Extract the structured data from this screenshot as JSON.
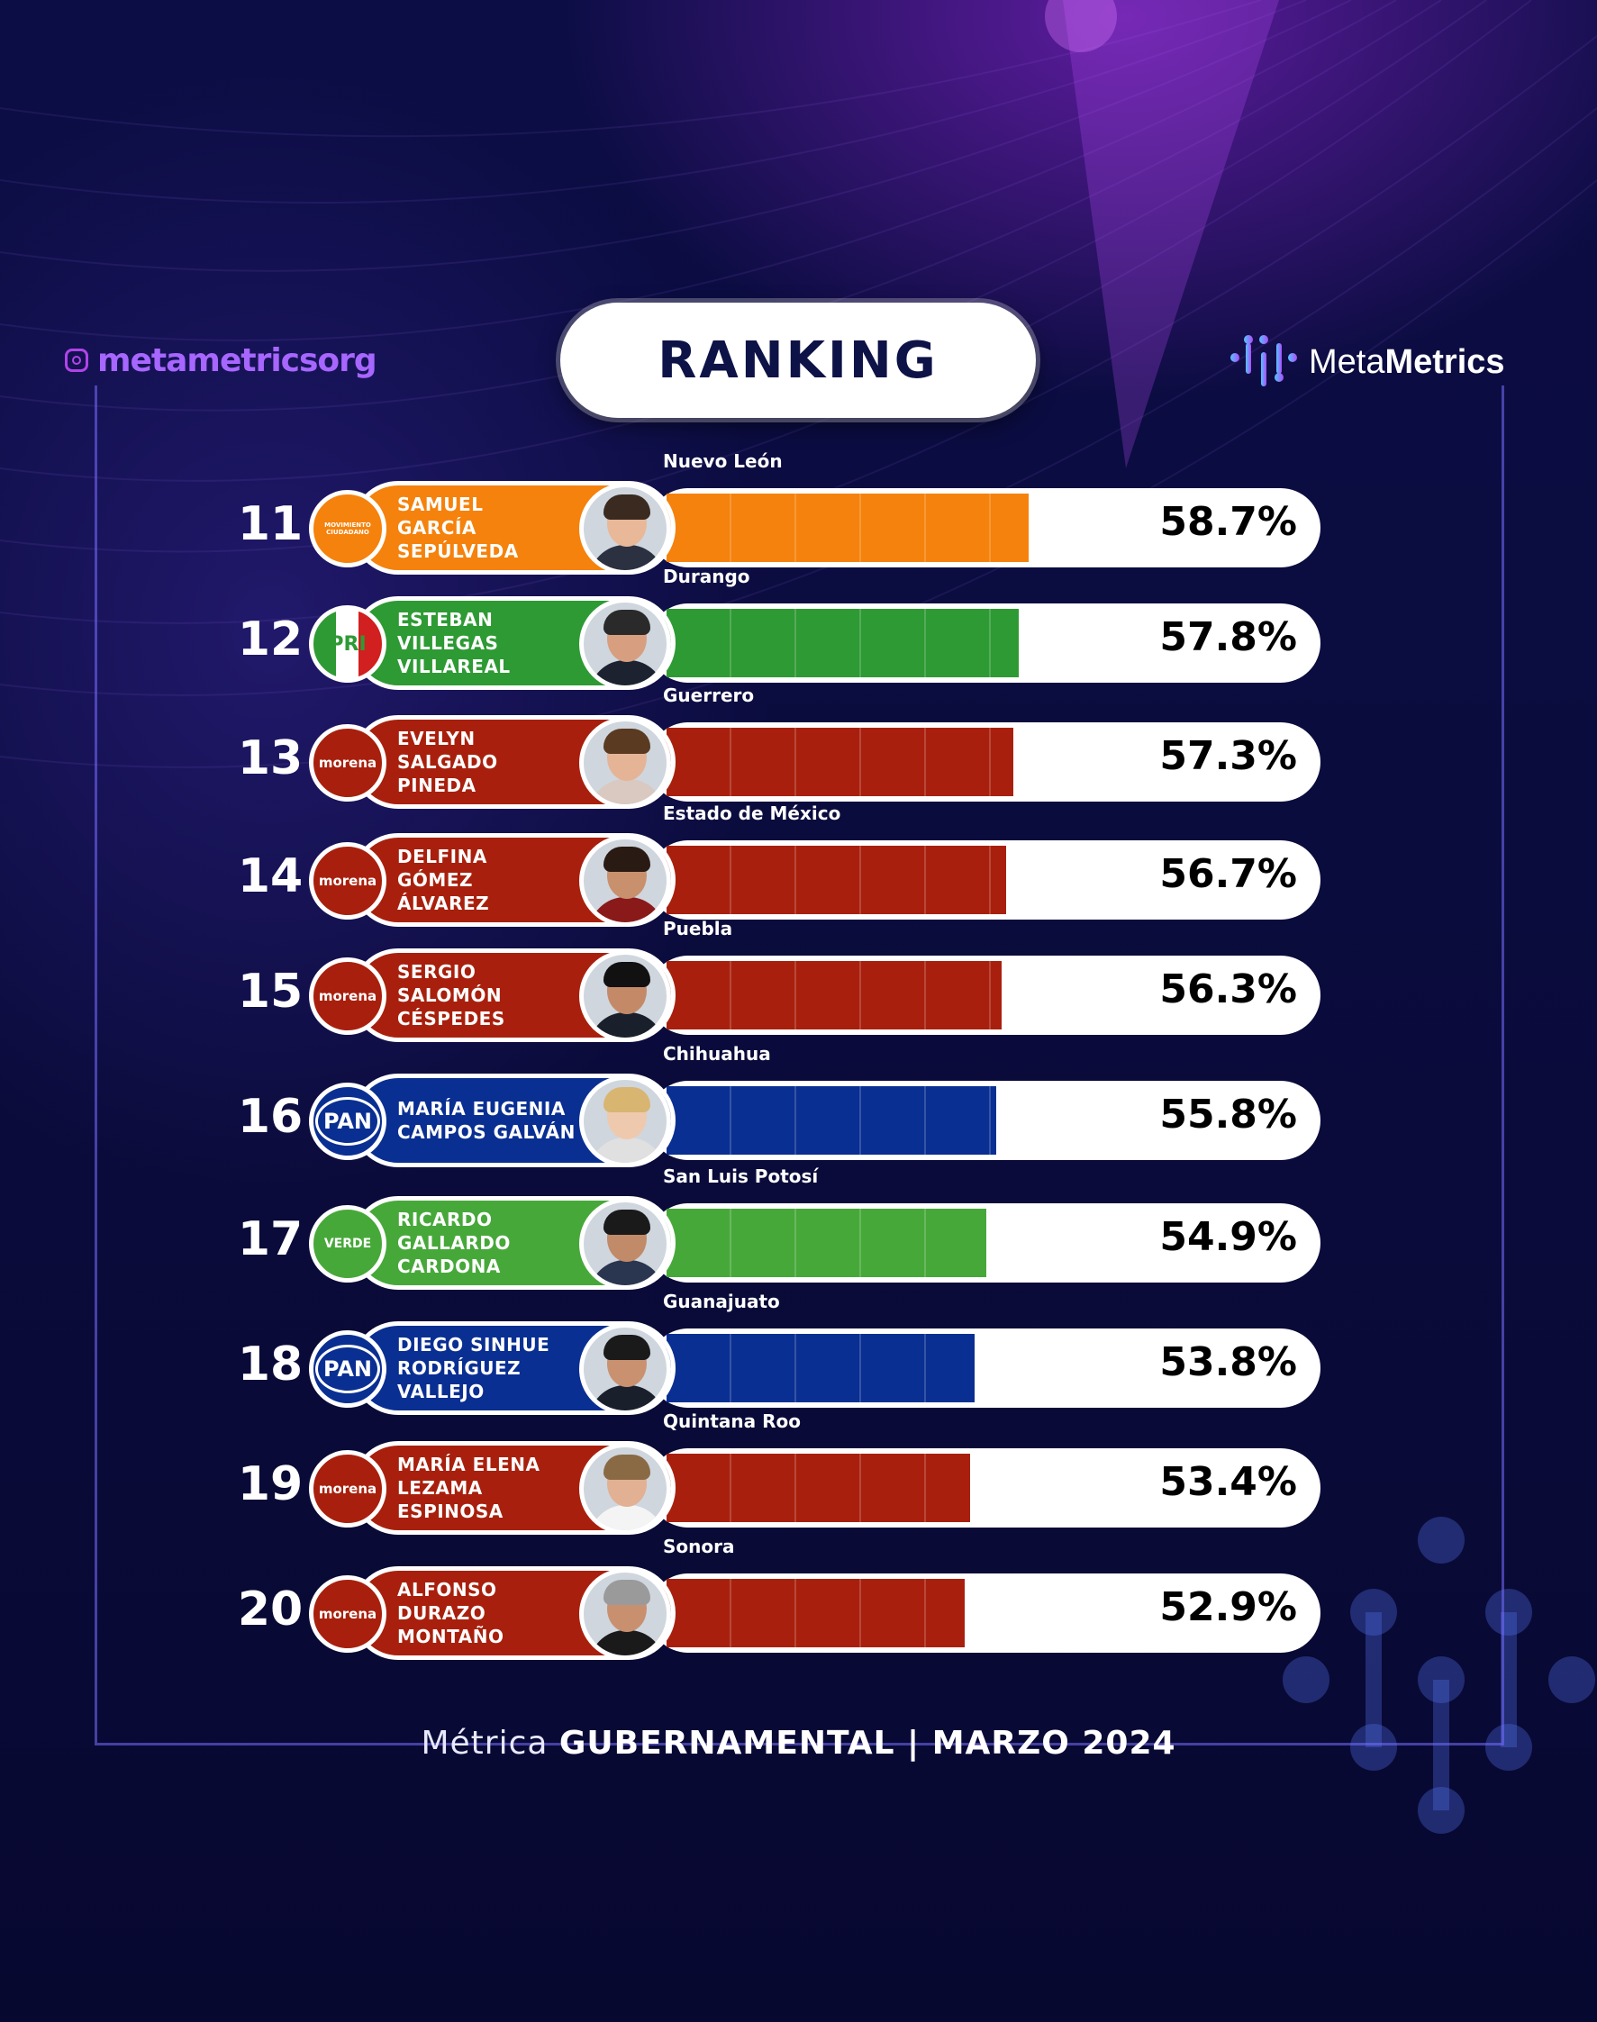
{
  "header": {
    "instagram_handle": "metametricsorg",
    "title": "RANKING",
    "brand_prefix": "Meta",
    "brand_suffix": "Metrics"
  },
  "footer": {
    "light": "Métrica",
    "bold": "GUBERNAMENTAL | MARZO 2024"
  },
  "colors": {
    "mc": "#f5820c",
    "pri": "#2e9a34",
    "morena": "#a8200d",
    "pan": "#0a2f92",
    "verde": "#47a83a"
  },
  "chart_data": {
    "type": "bar",
    "orientation": "horizontal",
    "xlim": [
      0,
      100
    ],
    "rows": [
      {
        "rank": "11",
        "name": [
          "SAMUEL",
          "GARCÍA",
          "SEPÚLVEDA"
        ],
        "state": "Nuevo León",
        "party": "mc",
        "party_label": "MOVIMIENTO CIUDADANO",
        "value": 58.7,
        "label": "58.7%"
      },
      {
        "rank": "12",
        "name": [
          "ESTEBAN",
          "VILLEGAS",
          "VILLAREAL"
        ],
        "state": "Durango",
        "party": "pri",
        "party_label": "PRI",
        "value": 57.8,
        "label": "57.8%"
      },
      {
        "rank": "13",
        "name": [
          "EVELYN",
          "SALGADO",
          "PINEDA"
        ],
        "state": "Guerrero",
        "party": "morena",
        "party_label": "morena",
        "value": 57.3,
        "label": "57.3%"
      },
      {
        "rank": "14",
        "name": [
          "DELFINA",
          "GÓMEZ",
          "ÁLVAREZ"
        ],
        "state": "Estado de México",
        "party": "morena",
        "party_label": "morena",
        "value": 56.7,
        "label": "56.7%"
      },
      {
        "rank": "15",
        "name": [
          "SERGIO",
          "SALOMÓN",
          "CÉSPEDES"
        ],
        "state": "Puebla",
        "party": "morena",
        "party_label": "morena",
        "value": 56.3,
        "label": "56.3%"
      },
      {
        "rank": "16",
        "name": [
          "MARÍA EUGENIA",
          "CAMPOS GALVÁN"
        ],
        "state": "Chihuahua",
        "party": "pan",
        "party_label": "PAN",
        "value": 55.8,
        "label": "55.8%"
      },
      {
        "rank": "17",
        "name": [
          "RICARDO",
          "GALLARDO",
          "CARDONA"
        ],
        "state": "San Luis Potosí",
        "party": "verde",
        "party_label": "VERDE",
        "value": 54.9,
        "label": "54.9%"
      },
      {
        "rank": "18",
        "name": [
          "DIEGO SINHUE",
          "RODRÍGUEZ",
          "VALLEJO"
        ],
        "state": "Guanajuato",
        "party": "pan",
        "party_label": "PAN",
        "value": 53.8,
        "label": "53.8%"
      },
      {
        "rank": "19",
        "name": [
          "MARÍA ELENA",
          "LEZAMA",
          "ESPINOSA"
        ],
        "state": "Quintana Roo",
        "party": "morena",
        "party_label": "morena",
        "value": 53.4,
        "label": "53.4%"
      },
      {
        "rank": "20",
        "name": [
          "ALFONSO",
          "DURAZO",
          "MONTAÑO"
        ],
        "state": "Sonora",
        "party": "morena",
        "party_label": "morena",
        "value": 52.9,
        "label": "52.9%"
      }
    ]
  }
}
